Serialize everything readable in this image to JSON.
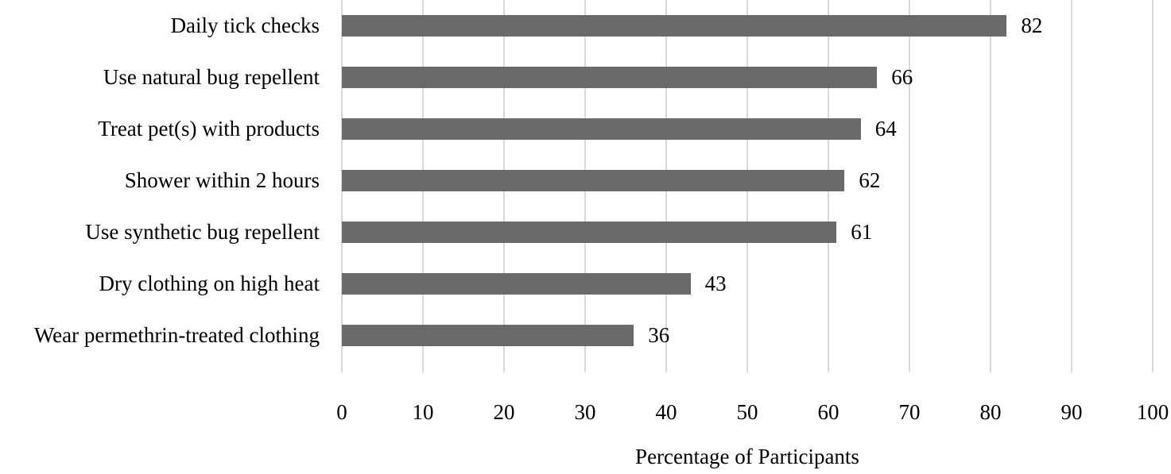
{
  "chart_data": {
    "type": "bar",
    "orientation": "horizontal",
    "title": "",
    "categories": [
      "Daily tick checks",
      "Use natural bug repellent",
      "Treat pet(s) with products",
      "Shower within 2 hours",
      "Use synthetic bug repellent",
      "Dry clothing on high heat",
      "Wear permethrin-treated clothing"
    ],
    "values": [
      82,
      66,
      64,
      62,
      61,
      43,
      36
    ],
    "xlabel": "Percentage of Participants",
    "ylabel": "",
    "xticks": [
      0,
      10,
      20,
      30,
      40,
      50,
      60,
      70,
      80,
      90,
      100
    ],
    "xlim": [
      0,
      100
    ],
    "xmax": 100,
    "grid": "vertical-only",
    "legend": "none",
    "bar_color": "#6a6a6a",
    "gridline_color": "#d9d9d9",
    "text_color": "#000000",
    "background_color": "#ffffff"
  }
}
